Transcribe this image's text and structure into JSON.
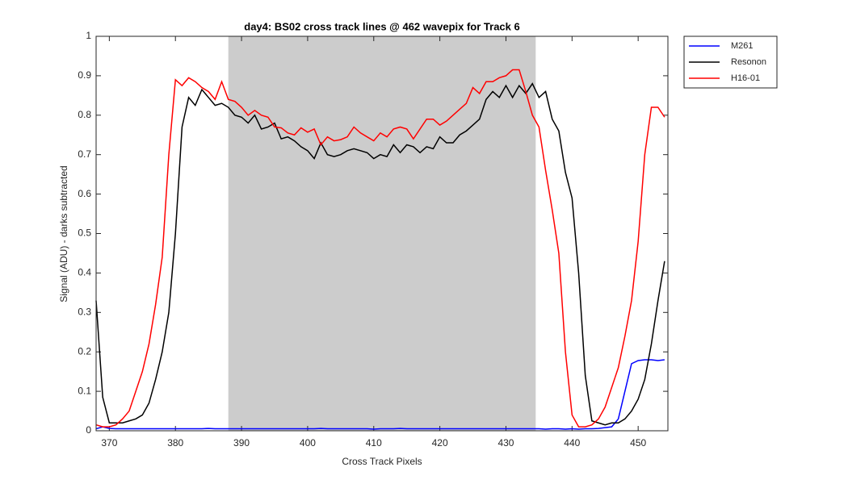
{
  "chart_data": {
    "type": "line",
    "title": "day4: BS02  cross track lines @ 462 wavepix for Track 6",
    "x_label": "Cross Track Pixels",
    "y_label": "Signal (ADU) - darks subtracted",
    "xlim": [
      368,
      454.5
    ],
    "ylim": [
      0,
      1
    ],
    "xticks": [
      370,
      380,
      390,
      400,
      410,
      420,
      430,
      440,
      450
    ],
    "yticks": [
      0,
      0.1,
      0.2,
      0.3,
      0.4,
      0.5,
      0.6,
      0.7,
      0.8,
      0.9,
      1
    ],
    "shaded_range": [
      388,
      434.5
    ],
    "shade_color": "#cccccc",
    "legend": "outside-upper-right",
    "x": [
      368,
      369,
      370,
      371,
      372,
      373,
      374,
      375,
      376,
      377,
      378,
      379,
      380,
      381,
      382,
      383,
      384,
      385,
      386,
      387,
      388,
      389,
      390,
      391,
      392,
      393,
      394,
      395,
      396,
      397,
      398,
      399,
      400,
      401,
      402,
      403,
      404,
      405,
      406,
      407,
      408,
      409,
      410,
      411,
      412,
      413,
      414,
      415,
      416,
      417,
      418,
      419,
      420,
      421,
      422,
      423,
      424,
      425,
      426,
      427,
      428,
      429,
      430,
      431,
      432,
      433,
      434,
      435,
      436,
      437,
      438,
      439,
      440,
      441,
      442,
      443,
      444,
      445,
      446,
      447,
      448,
      449,
      450,
      451,
      452,
      453,
      454
    ],
    "series": [
      {
        "name": "M261",
        "color": "#0000ff",
        "values": [
          0.005,
          0.01,
          0.006,
          0.005,
          0.005,
          0.005,
          0.005,
          0.005,
          0.005,
          0.005,
          0.005,
          0.005,
          0.005,
          0.005,
          0.005,
          0.005,
          0.005,
          0.006,
          0.005,
          0.005,
          0.005,
          0.005,
          0.005,
          0.005,
          0.005,
          0.005,
          0.005,
          0.005,
          0.005,
          0.005,
          0.005,
          0.005,
          0.005,
          0.005,
          0.006,
          0.005,
          0.005,
          0.005,
          0.005,
          0.005,
          0.005,
          0.005,
          0.004,
          0.005,
          0.005,
          0.005,
          0.006,
          0.005,
          0.005,
          0.005,
          0.005,
          0.005,
          0.005,
          0.005,
          0.005,
          0.005,
          0.005,
          0.005,
          0.005,
          0.005,
          0.005,
          0.005,
          0.005,
          0.005,
          0.005,
          0.005,
          0.005,
          0.005,
          0.004,
          0.005,
          0.005,
          0.004,
          0.005,
          0.004,
          0.005,
          0.005,
          0.006,
          0.008,
          0.01,
          0.03,
          0.1,
          0.17,
          0.178,
          0.18,
          0.18,
          0.178,
          0.18
        ]
      },
      {
        "name": "Resonon",
        "color": "#000000",
        "values": [
          0.33,
          0.085,
          0.02,
          0.02,
          0.02,
          0.025,
          0.03,
          0.04,
          0.07,
          0.13,
          0.2,
          0.3,
          0.5,
          0.77,
          0.845,
          0.825,
          0.865,
          0.845,
          0.825,
          0.83,
          0.82,
          0.8,
          0.795,
          0.78,
          0.8,
          0.765,
          0.77,
          0.78,
          0.74,
          0.745,
          0.735,
          0.72,
          0.71,
          0.69,
          0.73,
          0.7,
          0.695,
          0.7,
          0.71,
          0.715,
          0.71,
          0.705,
          0.69,
          0.7,
          0.695,
          0.725,
          0.705,
          0.725,
          0.72,
          0.705,
          0.72,
          0.715,
          0.745,
          0.73,
          0.73,
          0.75,
          0.76,
          0.775,
          0.79,
          0.84,
          0.86,
          0.845,
          0.875,
          0.845,
          0.875,
          0.855,
          0.88,
          0.845,
          0.86,
          0.79,
          0.76,
          0.655,
          0.59,
          0.4,
          0.14,
          0.025,
          0.02,
          0.015,
          0.02,
          0.02,
          0.03,
          0.05,
          0.08,
          0.13,
          0.22,
          0.33,
          0.43
        ]
      },
      {
        "name": "H16-01",
        "color": "#ff0000",
        "values": [
          0.015,
          0.01,
          0.01,
          0.015,
          0.03,
          0.05,
          0.1,
          0.15,
          0.22,
          0.32,
          0.44,
          0.7,
          0.89,
          0.875,
          0.895,
          0.885,
          0.87,
          0.86,
          0.84,
          0.885,
          0.84,
          0.835,
          0.82,
          0.8,
          0.812,
          0.8,
          0.795,
          0.77,
          0.768,
          0.755,
          0.75,
          0.768,
          0.757,
          0.765,
          0.725,
          0.745,
          0.735,
          0.738,
          0.745,
          0.77,
          0.755,
          0.745,
          0.735,
          0.755,
          0.745,
          0.765,
          0.77,
          0.765,
          0.74,
          0.765,
          0.79,
          0.79,
          0.775,
          0.785,
          0.8,
          0.815,
          0.83,
          0.87,
          0.855,
          0.885,
          0.885,
          0.895,
          0.9,
          0.915,
          0.915,
          0.86,
          0.8,
          0.77,
          0.66,
          0.56,
          0.45,
          0.2,
          0.04,
          0.01,
          0.01,
          0.015,
          0.03,
          0.06,
          0.11,
          0.16,
          0.24,
          0.33,
          0.48,
          0.7,
          0.82,
          0.82,
          0.795
        ]
      }
    ]
  }
}
